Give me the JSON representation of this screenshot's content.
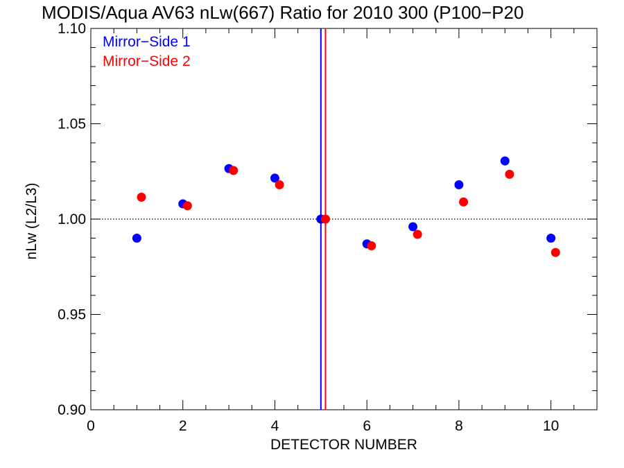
{
  "chart_data": {
    "type": "scatter",
    "title": "MODIS/Aqua AV63 nLw(667) Ratio for 2010 300 (P100−P20",
    "xlabel": "DETECTOR NUMBER",
    "ylabel": "nLw (L2/L3)",
    "xlim": [
      0,
      11
    ],
    "ylim": [
      0.9,
      1.1
    ],
    "x_ticks": [
      "0",
      "2",
      "4",
      "6",
      "8",
      "10"
    ],
    "y_ticks": [
      "0.90",
      "0.95",
      "1.00",
      "1.05",
      "1.10"
    ],
    "grid": false,
    "legend_position": "top-left",
    "reference_line_y": 1.0,
    "vertical_lines": [
      {
        "x": 5.0,
        "color": "#0000ff"
      },
      {
        "x": 5.1,
        "color": "#ff0000"
      }
    ],
    "series": [
      {
        "name": "Mirror−Side 1",
        "color": "#0000ff",
        "points": [
          {
            "x": 1,
            "y": 0.99
          },
          {
            "x": 2,
            "y": 1.008
          },
          {
            "x": 3,
            "y": 1.0265
          },
          {
            "x": 4,
            "y": 1.0215
          },
          {
            "x": 5,
            "y": 1.0
          },
          {
            "x": 6,
            "y": 0.987
          },
          {
            "x": 7,
            "y": 0.996
          },
          {
            "x": 8,
            "y": 1.018
          },
          {
            "x": 9,
            "y": 1.0305
          },
          {
            "x": 10,
            "y": 0.99
          }
        ]
      },
      {
        "name": "Mirror−Side 2",
        "color": "#ff0000",
        "points": [
          {
            "x": 1.1,
            "y": 1.0115
          },
          {
            "x": 2.1,
            "y": 1.007
          },
          {
            "x": 3.1,
            "y": 1.0255
          },
          {
            "x": 4.1,
            "y": 1.018
          },
          {
            "x": 5.1,
            "y": 1.0
          },
          {
            "x": 6.1,
            "y": 0.986
          },
          {
            "x": 7.1,
            "y": 0.992
          },
          {
            "x": 8.1,
            "y": 1.009
          },
          {
            "x": 9.1,
            "y": 1.0235
          },
          {
            "x": 10.1,
            "y": 0.9825
          }
        ]
      }
    ]
  }
}
